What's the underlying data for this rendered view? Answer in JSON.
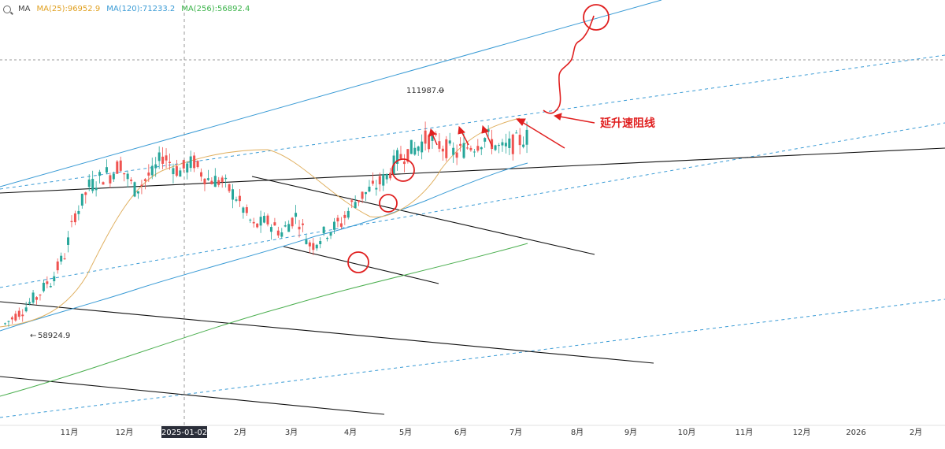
{
  "legend": {
    "ma_label": "MA",
    "ma25": "MA(25):96952.9",
    "ma120": "MA(120):71233.2",
    "ma256": "MA(256):56892.4"
  },
  "annotations": {
    "high_label": "111987.0",
    "low_label": "58924.9",
    "resistance_label": "延升速阻线"
  },
  "colors": {
    "up": "#26a69a",
    "down": "#ef5350",
    "ma25": "#e0b060",
    "ma120": "#3a9bd5",
    "ma256": "#4caf50",
    "annotation": "#e02020",
    "trendline": "#111111",
    "channel": "#3a9bd5"
  },
  "chart_data": {
    "type": "candlestick",
    "x_axis": {
      "tick_labels": [
        "11月",
        "12月",
        "2025-01-02",
        "2月",
        "3月",
        "4月",
        "5月",
        "6月",
        "7月",
        "8月",
        "9月",
        "10月",
        "11月",
        "12月",
        "2026",
        "2月"
      ],
      "highlighted": "2025-01-02"
    },
    "price_labels": {
      "high": 111987.0,
      "low": 58924.9
    },
    "series": [
      {
        "name": "MA(25)",
        "value": 96952.9
      },
      {
        "name": "MA(120)",
        "value": 71233.2
      },
      {
        "name": "MA(256)",
        "value": 56892.4
      }
    ],
    "price_path": [
      [
        58924.9,
        62000
      ],
      [
        61500,
        66000
      ],
      [
        65000,
        70500
      ],
      [
        69000,
        77000
      ],
      [
        76000,
        91000
      ],
      [
        89000,
        97500
      ],
      [
        96000,
        99000
      ],
      [
        97500,
        102000
      ],
      [
        100000,
        94000
      ],
      [
        94500,
        99000
      ],
      [
        98000,
        105000
      ],
      [
        103000,
        99000
      ],
      [
        99500,
        102000
      ],
      [
        101000,
        97000
      ],
      [
        97500,
        96500
      ],
      [
        96000,
        92000
      ],
      [
        91500,
        85000
      ],
      [
        84500,
        86500
      ],
      [
        86000,
        83000
      ],
      [
        83500,
        88000
      ],
      [
        87500,
        79000
      ],
      [
        79500,
        83500
      ],
      [
        83000,
        86000
      ],
      [
        85500,
        92000
      ],
      [
        91500,
        94500
      ],
      [
        94000,
        97500
      ],
      [
        97000,
        103500
      ],
      [
        103000,
        105500
      ],
      [
        105000,
        108500
      ],
      [
        108000,
        106000
      ],
      [
        106000,
        104000
      ],
      [
        104500,
        106500
      ],
      [
        106000,
        108500
      ],
      [
        108500,
        105000
      ],
      [
        105000,
        107000
      ],
      [
        107000,
        109000
      ]
    ],
    "legend": "top-left"
  }
}
